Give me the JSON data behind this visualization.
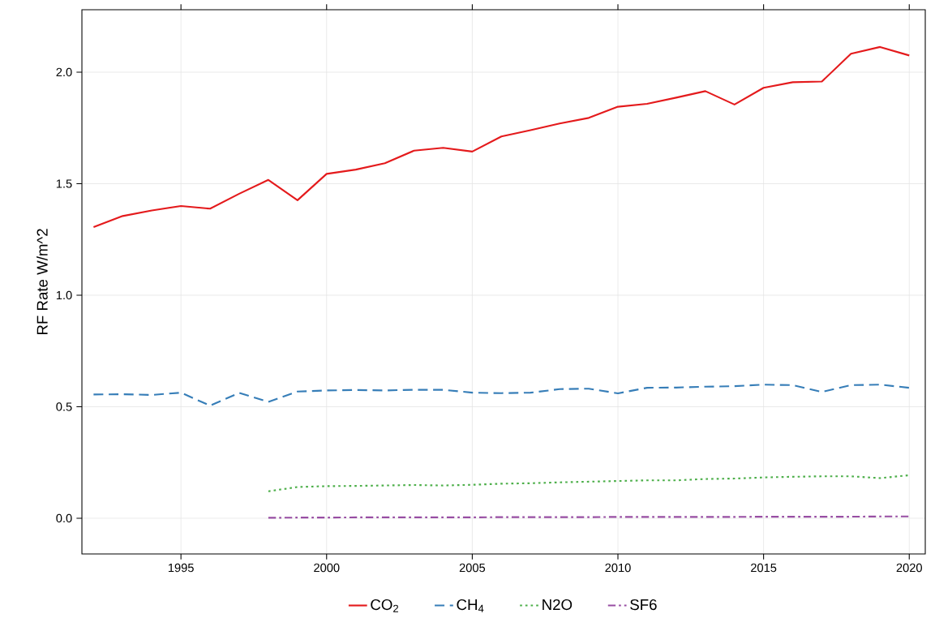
{
  "chart_data": {
    "type": "line",
    "ylabel": "RF Rate W/m^2",
    "x": [
      1992,
      1993,
      1994,
      1995,
      1996,
      1997,
      1998,
      1999,
      2000,
      2001,
      2002,
      2003,
      2004,
      2005,
      2006,
      2007,
      2008,
      2009,
      2010,
      2011,
      2012,
      2013,
      2014,
      2015,
      2016,
      2017,
      2018,
      2019,
      2020
    ],
    "series": [
      {
        "name": "CO$_{2}$",
        "color": "#e41a1c",
        "line_style": "solid",
        "values": [
          1.305,
          1.355,
          1.38,
          1.4,
          1.388,
          1.455,
          1.517,
          1.426,
          1.544,
          1.563,
          1.592,
          1.648,
          1.661,
          1.644,
          1.712,
          1.74,
          1.77,
          1.795,
          1.845,
          1.858,
          1.886,
          1.915,
          1.855,
          1.93,
          1.955,
          1.958,
          2.083,
          2.113,
          2.075
        ]
      },
      {
        "name": "CH$_{4}$",
        "color": "#377eb8",
        "line_style": "dashed",
        "values": [
          0.555,
          0.556,
          0.553,
          0.563,
          0.505,
          0.562,
          0.522,
          0.568,
          0.573,
          0.575,
          0.573,
          0.576,
          0.576,
          0.563,
          0.561,
          0.563,
          0.579,
          0.581,
          0.56,
          0.585,
          0.586,
          0.59,
          0.592,
          0.599,
          0.597,
          0.566,
          0.597,
          0.599,
          0.585
        ]
      },
      {
        "name": "N2O",
        "color": "#4daf4a",
        "line_style": "dotted",
        "x": [
          1998,
          1999,
          2000,
          2001,
          2002,
          2003,
          2004,
          2005,
          2006,
          2007,
          2008,
          2009,
          2010,
          2011,
          2012,
          2013,
          2014,
          2015,
          2016,
          2017,
          2018,
          2019,
          2020
        ],
        "values": [
          0.121,
          0.14,
          0.144,
          0.145,
          0.147,
          0.149,
          0.147,
          0.15,
          0.155,
          0.157,
          0.161,
          0.164,
          0.167,
          0.17,
          0.17,
          0.176,
          0.178,
          0.183,
          0.186,
          0.188,
          0.188,
          0.18,
          0.193
        ]
      },
      {
        "name": "SF6",
        "color": "#984ea3",
        "line_style": "dashdot",
        "x": [
          1998,
          1999,
          2000,
          2001,
          2002,
          2003,
          2004,
          2005,
          2006,
          2007,
          2008,
          2009,
          2010,
          2011,
          2012,
          2013,
          2014,
          2015,
          2016,
          2017,
          2018,
          2019,
          2020
        ],
        "values": [
          0.002,
          0.003,
          0.003,
          0.004,
          0.004,
          0.004,
          0.004,
          0.004,
          0.005,
          0.005,
          0.005,
          0.005,
          0.006,
          0.006,
          0.006,
          0.006,
          0.006,
          0.007,
          0.007,
          0.007,
          0.007,
          0.008,
          0.008
        ]
      }
    ],
    "xlim": [
      1991.6,
      2020.55
    ],
    "ylim": [
      -0.16,
      2.28
    ],
    "xticks": [
      1995,
      2000,
      2005,
      2010,
      2015,
      2020
    ],
    "yticks": [
      {
        "value": 0,
        "label": "0.0"
      },
      {
        "value": 0.5,
        "label": "0.5"
      },
      {
        "value": 1,
        "label": "1.0"
      },
      {
        "value": 1.5,
        "label": "1.5"
      },
      {
        "value": 2,
        "label": "2.0"
      }
    ],
    "grid": true,
    "legend": "bottom",
    "marker": "none"
  }
}
